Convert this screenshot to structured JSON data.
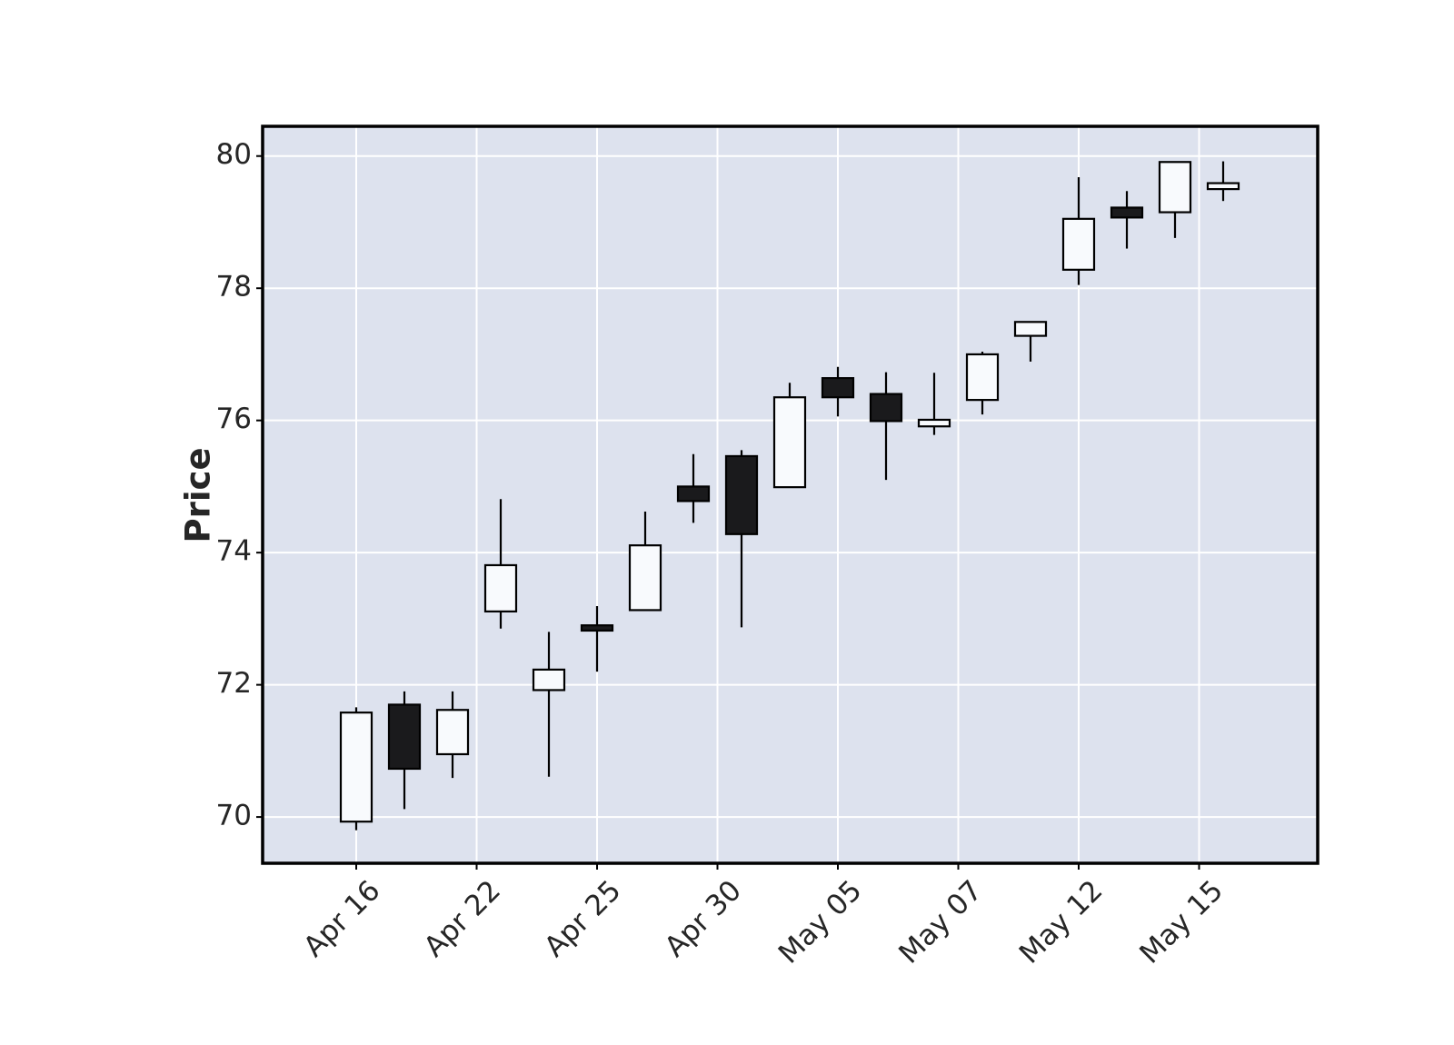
{
  "chart_data": {
    "type": "candlestick",
    "ylabel": "Price",
    "ylim": [
      69.3,
      80.45
    ],
    "yticks": [
      70,
      72,
      74,
      76,
      78,
      80
    ],
    "xtick_labels": [
      "Apr 16",
      "Apr 22",
      "Apr 25",
      "Apr 30",
      "May 05",
      "May 07",
      "May 12",
      "May 15"
    ],
    "xtick_indices": [
      0,
      2.5,
      5,
      7.5,
      10,
      12.5,
      15,
      17.5
    ],
    "grid": true,
    "colors": {
      "background": "#dde2ee",
      "up": "#f8fafd",
      "down": "#1a1a1c",
      "edge": "#000000",
      "grid": "#ffffff",
      "text": "#262626"
    },
    "candles": [
      {
        "open": 69.93,
        "high": 71.66,
        "low": 69.8,
        "close": 71.58
      },
      {
        "open": 71.7,
        "high": 71.9,
        "low": 70.12,
        "close": 70.73
      },
      {
        "open": 70.95,
        "high": 71.9,
        "low": 70.59,
        "close": 71.62
      },
      {
        "open": 73.11,
        "high": 74.81,
        "low": 72.85,
        "close": 73.81
      },
      {
        "open": 71.92,
        "high": 72.8,
        "low": 70.61,
        "close": 72.23
      },
      {
        "open": 72.9,
        "high": 73.19,
        "low": 72.2,
        "close": 72.82
      },
      {
        "open": 73.13,
        "high": 74.62,
        "low": 73.13,
        "close": 74.11
      },
      {
        "open": 75.0,
        "high": 75.49,
        "low": 74.45,
        "close": 74.78
      },
      {
        "open": 75.46,
        "high": 75.55,
        "low": 72.87,
        "close": 74.28
      },
      {
        "open": 74.99,
        "high": 76.57,
        "low": 74.99,
        "close": 76.35
      },
      {
        "open": 76.64,
        "high": 76.81,
        "low": 76.06,
        "close": 76.35
      },
      {
        "open": 76.4,
        "high": 76.73,
        "low": 75.1,
        "close": 75.99
      },
      {
        "open": 75.91,
        "high": 76.72,
        "low": 75.78,
        "close": 76.01
      },
      {
        "open": 76.31,
        "high": 77.04,
        "low": 76.09,
        "close": 77.0
      },
      {
        "open": 77.28,
        "high": 77.5,
        "low": 76.89,
        "close": 77.49
      },
      {
        "open": 78.28,
        "high": 79.68,
        "low": 78.05,
        "close": 79.05
      },
      {
        "open": 79.22,
        "high": 79.47,
        "low": 78.6,
        "close": 79.07
      },
      {
        "open": 79.15,
        "high": 79.91,
        "low": 78.76,
        "close": 79.91
      },
      {
        "open": 79.5,
        "high": 79.92,
        "low": 79.32,
        "close": 79.59
      }
    ]
  }
}
